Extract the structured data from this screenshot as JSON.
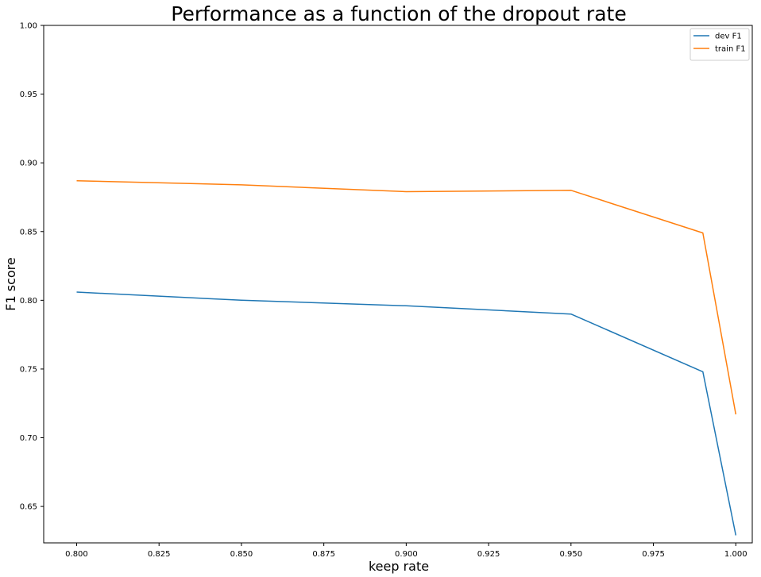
{
  "chart_data": {
    "type": "line",
    "title": "Performance as a function of the dropout rate",
    "xlabel": "keep rate",
    "ylabel": "F1 score",
    "xlim": [
      0.79,
      1.005
    ],
    "ylim": [
      0.6235,
      1.0
    ],
    "xticks": [
      "0.800",
      "0.825",
      "0.850",
      "0.875",
      "0.900",
      "0.925",
      "0.950",
      "0.975",
      "1.000"
    ],
    "yticks": [
      "0.65",
      "0.70",
      "0.75",
      "0.80",
      "0.85",
      "0.90",
      "0.95",
      "1.00"
    ],
    "grid": false,
    "legend_position": "top-right",
    "x": [
      0.8,
      0.85,
      0.9,
      0.95,
      0.99,
      1.0
    ],
    "series": [
      {
        "name": "dev F1",
        "color": "#1f77b4",
        "values": [
          0.806,
          0.8,
          0.796,
          0.79,
          0.748,
          0.629
        ]
      },
      {
        "name": "train F1",
        "color": "#ff7f0e",
        "values": [
          0.887,
          0.884,
          0.879,
          0.88,
          0.849,
          0.717
        ]
      }
    ]
  }
}
